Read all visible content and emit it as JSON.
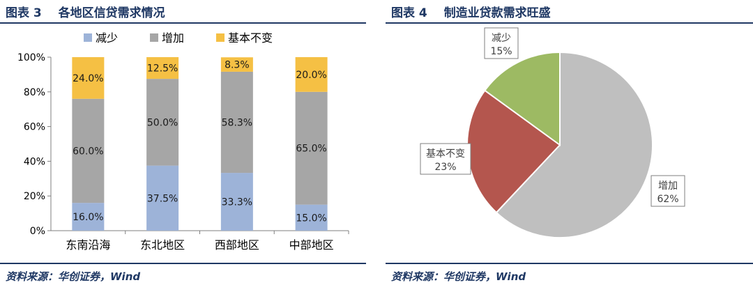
{
  "fig3": {
    "prefix": "图表",
    "number": "3",
    "title": "各地区信贷需求情况",
    "source": "资料来源：华创证券，Wind"
  },
  "fig4": {
    "prefix": "图表",
    "number": "4",
    "title": "制造业贷款需求旺盛",
    "source": "资料来源：华创证券，Wind"
  },
  "chart_data": [
    {
      "type": "bar",
      "stacked": true,
      "categories": [
        "东南沿海",
        "东北地区",
        "西部地区",
        "中部地区"
      ],
      "series": [
        {
          "name": "减少",
          "color": "#9db3d8",
          "values": [
            16.0,
            37.5,
            33.3,
            15.0
          ],
          "labels": [
            "16.0%",
            "37.5%",
            "33.3%",
            "15.0%"
          ]
        },
        {
          "name": "增加",
          "color": "#a6a6a6",
          "values": [
            60.0,
            50.0,
            58.3,
            65.0
          ],
          "labels": [
            "60.0%",
            "50.0%",
            "58.3%",
            "65.0%"
          ]
        },
        {
          "name": "基本不变",
          "color": "#f5c044",
          "values": [
            24.0,
            12.5,
            8.3,
            20.0
          ],
          "labels": [
            "24.0%",
            "12.5%",
            "8.3%",
            "20.0%"
          ]
        }
      ],
      "ylim": [
        0,
        100
      ],
      "yticks": [
        "0%",
        "20%",
        "40%",
        "60%",
        "80%",
        "100%"
      ],
      "legend_position": "top",
      "grid": false
    },
    {
      "type": "pie",
      "slices": [
        {
          "name": "增加",
          "value": 62,
          "label": "62%",
          "color": "#bfbfbf"
        },
        {
          "name": "基本不变",
          "value": 23,
          "label": "23%",
          "color": "#b4564e"
        },
        {
          "name": "减少",
          "value": 15,
          "label": "15%",
          "color": "#9dba63"
        }
      ]
    }
  ]
}
